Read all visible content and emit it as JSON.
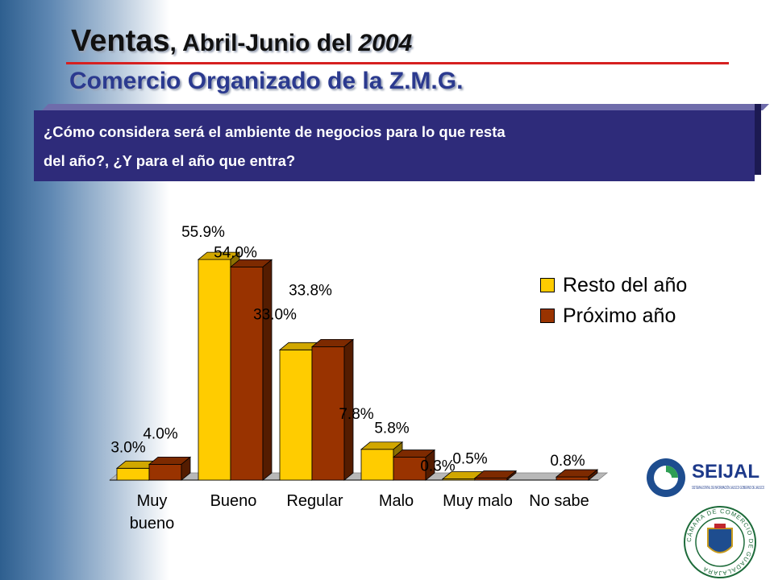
{
  "header": {
    "title_main": "Ventas",
    "title_mid": ", Abril-Junio del ",
    "title_year": "2004",
    "subtitle": "Comercio Organizado de la Z.M.G."
  },
  "question": {
    "line1": "¿Cómo considera será el ambiente de negocios para lo que resta",
    "line2": "del año?, ¿Y para el año que entra?"
  },
  "logos": {
    "seijal_name": "SEIJAL",
    "seijal_tagline": "SISTEMA ESTATAL DE INFORMACIÓN JALISCO GOBIERNO DE JALISCO",
    "camara_text": "CÁMARA DE COMERCIO DE GUADALAJARA"
  },
  "chart_data": {
    "type": "bar",
    "categories": [
      "Muy bueno",
      "Bueno",
      "Regular",
      "Malo",
      "Muy malo",
      "No sabe"
    ],
    "category_lines": [
      [
        "Muy",
        "bueno"
      ],
      [
        "Bueno"
      ],
      [
        "Regular"
      ],
      [
        "Malo"
      ],
      [
        "Muy malo"
      ],
      [
        "No sabe"
      ]
    ],
    "series": [
      {
        "name": "Resto del año",
        "color": "#ffcc00",
        "values": [
          3.0,
          55.9,
          33.0,
          7.8,
          0.3,
          0.0
        ],
        "labels": [
          "3.0%",
          "55.9%",
          "33.0%",
          "7.8%",
          "0.3%",
          null
        ]
      },
      {
        "name": "Próximo año",
        "color": "#993300",
        "values": [
          4.0,
          54.0,
          33.8,
          5.8,
          0.5,
          0.8
        ],
        "labels": [
          "4.0%",
          "54.0%",
          "33.8%",
          "5.8%",
          "0.5%",
          "0.8%"
        ]
      }
    ],
    "ylim": [
      0,
      60
    ],
    "grid": false,
    "legend_position": "right",
    "xlabel": "",
    "ylabel": ""
  }
}
